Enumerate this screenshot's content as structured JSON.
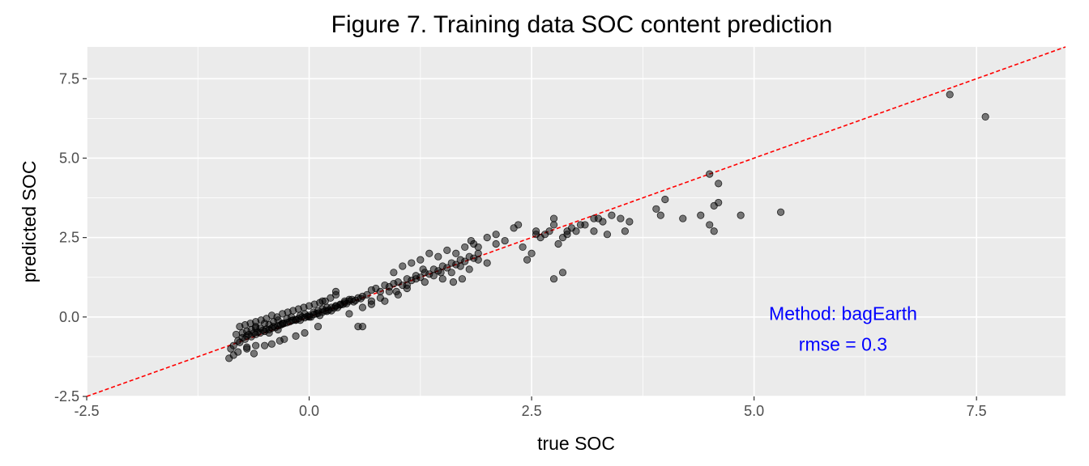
{
  "chart_data": {
    "type": "scatter",
    "title": "Figure 7.  Training data SOC content prediction",
    "xlabel": "true SOC",
    "ylabel": "predicted SOC",
    "xlim": [
      -2.5,
      8.5
    ],
    "ylim": [
      -2.5,
      8.5
    ],
    "x_ticks": [
      -2.5,
      0.0,
      2.5,
      5.0,
      7.5
    ],
    "x_tick_labels": [
      "-2.5",
      "0.0",
      "2.5",
      "5.0",
      "7.5"
    ],
    "y_ticks": [
      -2.5,
      0.0,
      2.5,
      5.0,
      7.5
    ],
    "y_tick_labels": [
      "-2.5",
      "0.0",
      "2.5",
      "5.0",
      "7.5"
    ],
    "grid": true,
    "panel_color": "#ebebeb",
    "reference_line": {
      "slope": 1,
      "intercept": 0,
      "color": "#ff0000",
      "style": "dashed"
    },
    "annotation": {
      "lines": [
        "Method: bagEarth",
        "rmse = 0.3"
      ],
      "color": "#0000ff",
      "x": 6.0,
      "y": -0.5
    },
    "points": {
      "color": "#000000",
      "opacity": 0.5,
      "x": [
        -0.85,
        -0.8,
        -0.78,
        -0.75,
        -0.72,
        -0.7,
        -0.68,
        -0.65,
        -0.62,
        -0.6,
        -0.58,
        -0.55,
        -0.52,
        -0.5,
        -0.48,
        -0.45,
        -0.42,
        -0.4,
        -0.38,
        -0.35,
        -0.32,
        -0.3,
        -0.28,
        -0.25,
        -0.22,
        -0.2,
        -0.18,
        -0.15,
        -0.12,
        -0.1,
        -0.08,
        -0.05,
        -0.02,
        0.0,
        0.02,
        0.05,
        0.08,
        0.1,
        0.12,
        0.15,
        0.18,
        0.2,
        0.22,
        0.25,
        0.28,
        0.3,
        0.32,
        0.35,
        0.38,
        0.4,
        0.42,
        0.45,
        0.48,
        0.5,
        0.52,
        0.55,
        0.58,
        0.6,
        -0.82,
        -0.75,
        -0.7,
        -0.65,
        -0.6,
        -0.55,
        -0.5,
        -0.45,
        -0.4,
        -0.35,
        -0.3,
        -0.25,
        -0.2,
        -0.15,
        -0.1,
        -0.05,
        0.0,
        0.05,
        0.1,
        0.15,
        0.2,
        0.25,
        0.3,
        0.35,
        0.4,
        0.45,
        -0.78,
        -0.72,
        -0.66,
        -0.6,
        -0.54,
        -0.48,
        -0.42,
        -0.36,
        -0.3,
        -0.24,
        -0.18,
        -0.12,
        -0.06,
        0.0,
        0.06,
        0.12,
        0.18,
        0.24,
        0.3,
        -0.88,
        -0.8,
        -0.7,
        -0.62,
        -0.5,
        -0.42,
        -0.33,
        -0.28,
        -0.15,
        -0.05,
        0.1,
        -0.9,
        -0.85,
        -0.7,
        -0.6,
        -0.45,
        -0.35,
        0.15,
        0.3,
        0.65,
        0.7,
        0.75,
        0.8,
        0.85,
        0.9,
        0.95,
        1.0,
        1.05,
        1.1,
        1.15,
        1.2,
        1.25,
        1.3,
        1.35,
        1.4,
        1.45,
        1.5,
        1.55,
        1.6,
        1.65,
        1.7,
        1.75,
        1.8,
        1.85,
        1.9,
        0.6,
        0.7,
        0.8,
        0.9,
        1.0,
        1.1,
        1.2,
        1.3,
        1.4,
        1.5,
        1.6,
        1.7,
        1.8,
        1.9,
        2.0,
        0.95,
        1.05,
        1.15,
        1.25,
        1.35,
        1.45,
        1.55,
        1.65,
        1.75,
        1.85,
        -0.6,
        0.45,
        0.55,
        0.6,
        0.7,
        0.85,
        0.98,
        1.1,
        1.28,
        1.48,
        1.62,
        1.72,
        1.82,
        1.9,
        2.0,
        2.1,
        2.2,
        2.35,
        2.4,
        2.45,
        2.5,
        2.55,
        2.6,
        2.7,
        2.75,
        2.8,
        2.85,
        2.9,
        2.95,
        3.0,
        3.1,
        3.2,
        3.3,
        3.4,
        3.5,
        3.6,
        2.1,
        2.3,
        2.55,
        2.65,
        2.75,
        2.9,
        3.05,
        3.2,
        3.35,
        2.85,
        2.75,
        3.25,
        3.55,
        3.9,
        3.95,
        4.0,
        4.2,
        4.4,
        4.5,
        4.55,
        4.6,
        4.6,
        4.5,
        4.55,
        4.85,
        5.3,
        7.2,
        7.6
      ],
      "y": [
        -0.9,
        -0.75,
        -0.8,
        -0.65,
        -0.7,
        -0.6,
        -0.55,
        -0.62,
        -0.5,
        -0.55,
        -0.48,
        -0.5,
        -0.42,
        -0.45,
        -0.38,
        -0.4,
        -0.35,
        -0.3,
        -0.33,
        -0.28,
        -0.25,
        -0.22,
        -0.2,
        -0.18,
        -0.15,
        -0.12,
        -0.1,
        -0.08,
        -0.05,
        -0.1,
        0.0,
        -0.02,
        0.02,
        0.05,
        0.0,
        0.08,
        0.1,
        0.12,
        0.05,
        0.15,
        0.2,
        0.18,
        0.22,
        0.3,
        0.28,
        0.35,
        0.3,
        0.38,
        0.4,
        0.45,
        0.42,
        0.5,
        0.55,
        0.48,
        0.52,
        0.6,
        0.58,
        0.65,
        -0.55,
        -0.5,
        -0.45,
        -0.4,
        -0.3,
        -0.35,
        -0.2,
        -0.25,
        -0.15,
        -0.1,
        -0.2,
        -0.05,
        0.0,
        -0.1,
        0.05,
        0.1,
        0.0,
        0.15,
        0.2,
        0.25,
        0.3,
        0.2,
        0.35,
        0.4,
        0.5,
        0.55,
        -0.3,
        -0.25,
        -0.2,
        -0.15,
        -0.1,
        -0.05,
        0.05,
        0.0,
        0.1,
        0.15,
        0.2,
        0.25,
        0.3,
        0.35,
        0.4,
        0.45,
        0.5,
        0.6,
        0.7,
        -1.0,
        -1.1,
        -0.95,
        -1.15,
        -0.9,
        -0.85,
        -0.75,
        -0.7,
        -0.6,
        -0.5,
        -0.3,
        -1.3,
        -1.2,
        -1.0,
        -0.9,
        -0.5,
        -0.4,
        0.5,
        0.8,
        0.7,
        0.85,
        0.9,
        0.8,
        1.0,
        0.95,
        1.05,
        1.1,
        1.0,
        1.2,
        1.15,
        1.3,
        1.25,
        1.4,
        1.35,
        1.5,
        1.45,
        1.6,
        1.55,
        1.7,
        1.65,
        1.8,
        1.75,
        1.9,
        1.85,
        2.0,
        0.3,
        0.5,
        0.6,
        0.8,
        0.7,
        1.0,
        1.2,
        1.1,
        1.3,
        1.2,
        1.4,
        1.6,
        1.5,
        1.8,
        1.7,
        1.4,
        1.6,
        1.7,
        1.8,
        2.0,
        1.9,
        2.1,
        2.0,
        2.2,
        2.3,
        -0.35,
        0.1,
        -0.3,
        -0.3,
        0.4,
        0.5,
        0.8,
        0.9,
        1.5,
        1.4,
        1.1,
        1.2,
        2.4,
        2.2,
        2.5,
        2.3,
        2.4,
        2.9,
        2.2,
        1.8,
        2.0,
        2.6,
        2.5,
        2.7,
        2.9,
        2.3,
        2.5,
        2.6,
        2.8,
        2.7,
        2.9,
        3.1,
        3.0,
        3.2,
        3.1,
        3.0,
        2.6,
        2.8,
        2.7,
        2.6,
        3.1,
        2.7,
        2.9,
        2.7,
        2.6,
        1.4,
        1.2,
        3.1,
        2.7,
        3.4,
        3.2,
        3.7,
        3.1,
        3.2,
        2.9,
        3.5,
        3.6,
        4.2,
        4.5,
        2.7,
        3.2,
        3.3,
        7.0,
        6.3
      ]
    }
  }
}
